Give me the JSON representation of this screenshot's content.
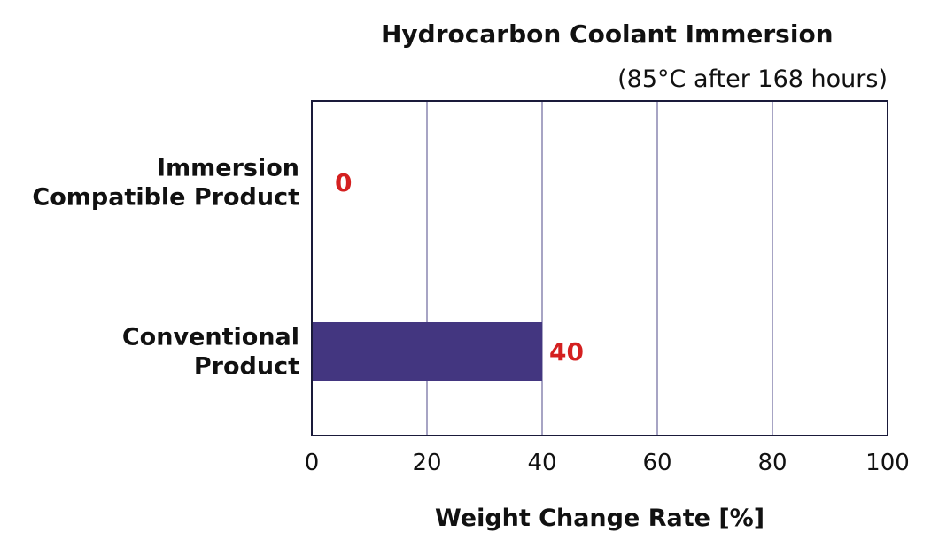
{
  "chart_data": {
    "type": "bar",
    "orientation": "horizontal",
    "title": "Hydrocarbon Coolant Immersion",
    "subtitle": "(85°C after 168 hours)",
    "xlabel": "Weight Change Rate [%]",
    "ylabel": "",
    "categories": [
      [
        "Immersion",
        "Compatible Product"
      ],
      [
        "Conventional",
        "Product"
      ]
    ],
    "values": [
      0,
      40
    ],
    "data_labels": [
      "0",
      "40"
    ],
    "xlim": [
      0,
      100
    ],
    "xticks": [
      0,
      20,
      40,
      60,
      80,
      100
    ],
    "xtick_labels": [
      "0",
      "20",
      "40",
      "60",
      "80",
      "100"
    ],
    "grid": "vertical",
    "legend": "none"
  },
  "colors": {
    "bar": "#433680",
    "data_label": "#d42020",
    "grid": "#8a86b0",
    "frame": "#1a1a3a",
    "text": "#111111"
  }
}
